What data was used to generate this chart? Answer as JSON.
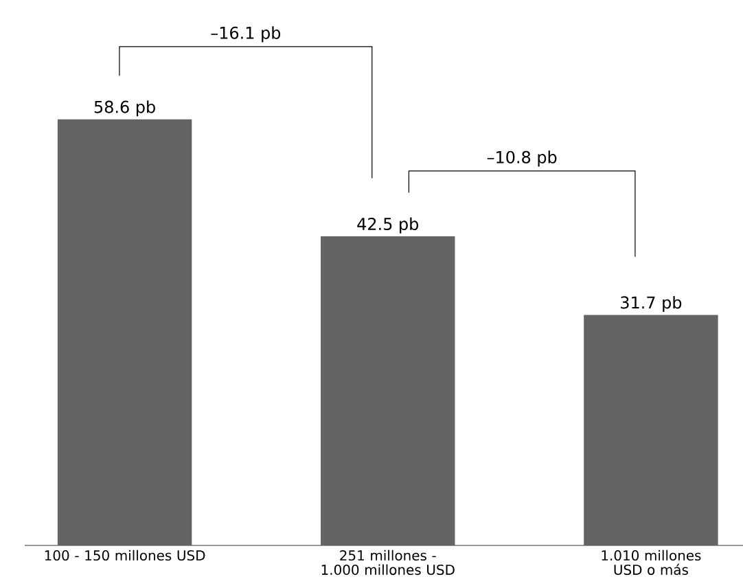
{
  "chart_data": {
    "type": "bar",
    "categories": [
      "100 - 150 millones USD",
      "251 millones - 1.000 millones USD",
      "1.010 millones USD o más"
    ],
    "values": [
      58.6,
      42.5,
      31.7
    ],
    "color": "#636363",
    "value_labels": [
      "58.6 pb",
      "42.5 pb",
      "31.7 pb"
    ],
    "annotations": [
      "–16.1 pb",
      "–10.8 pb"
    ]
  }
}
